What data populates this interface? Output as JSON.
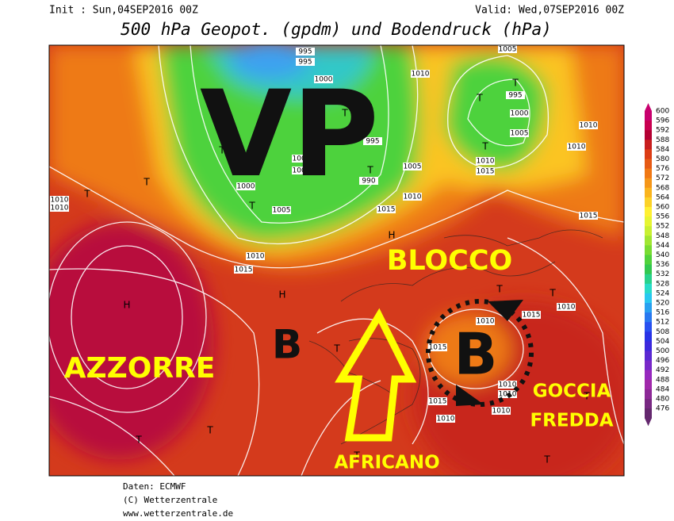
{
  "header": {
    "init": "Init : Sun,04SEP2016 00Z",
    "valid": "Valid: Wed,07SEP2016 00Z",
    "title": "500 hPa Geopot. (gpdm) und Bodendruck (hPa)"
  },
  "annotations": {
    "vp": "VP",
    "blocco": "BLOCCO",
    "azzorre": "AZZORRE",
    "low_west": "B",
    "low_east": "B",
    "africano": "AFRICANO",
    "goccia": "GOCCIA",
    "fredda": "FREDDA"
  },
  "isobar_labels": [
    995,
    995,
    1000,
    1005,
    1010,
    1000,
    995,
    1005,
    1005,
    1005,
    995,
    990,
    1005,
    1000,
    1005,
    1010,
    1015,
    1010,
    1015,
    1010,
    1010,
    1010,
    1015,
    1010,
    1010,
    1010,
    1015,
    1015,
    1010,
    1015,
    1010,
    1010,
    1015,
    1010,
    1010
  ],
  "pressure_centers": [
    "H",
    "H",
    "H",
    "T",
    "T",
    "T",
    "T",
    "T",
    "T",
    "T",
    "T",
    "T",
    "T",
    "T",
    "T",
    "T",
    "T",
    "T",
    "T",
    "T"
  ],
  "colorbar": {
    "levels": [
      600,
      596,
      592,
      588,
      584,
      580,
      576,
      572,
      568,
      564,
      560,
      556,
      552,
      548,
      544,
      540,
      536,
      532,
      528,
      524,
      520,
      516,
      512,
      508,
      504,
      500,
      496,
      492,
      488,
      484,
      480,
      476
    ],
    "colors": [
      "#c8006e",
      "#c80050",
      "#b40032",
      "#c81e1e",
      "#dc3c14",
      "#e65a14",
      "#f07814",
      "#f59619",
      "#fab41e",
      "#fcd228",
      "#fff032",
      "#e6f532",
      "#c8f032",
      "#a0e632",
      "#78dc32",
      "#50d23c",
      "#32c850",
      "#28d28c",
      "#28dcc8",
      "#28c8f0",
      "#28a0f0",
      "#2878f0",
      "#2850f0",
      "#2832e6",
      "#3c28dc",
      "#5a28d2",
      "#7828c8",
      "#9628be",
      "#a028aa",
      "#8c2896",
      "#782882",
      "#64286e"
    ]
  },
  "footer": {
    "source": "Daten: ECMWF",
    "copyright": "(C) Wetterzentrale",
    "url": "www.wetterzentrale.de"
  }
}
